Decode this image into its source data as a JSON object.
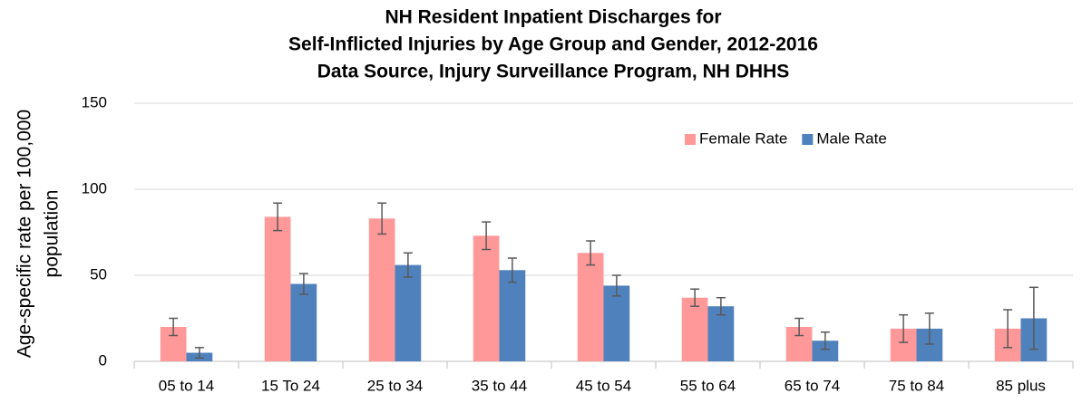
{
  "chart_data": {
    "type": "bar",
    "title": [
      "NH Resident Inpatient Discharges for",
      "Self-Inflicted Injuries by Age Group and Gender, 2012-2016",
      "Data Source, Injury Surveillance Program, NH DHHS"
    ],
    "y_label": [
      "Age-specific rate per 100,000",
      "population"
    ],
    "categories": [
      "05 to 14",
      "15 To 24",
      "25 to 34",
      "35 to 44",
      "45 to 54",
      "55 to 64",
      "65 to 74",
      "75 to 84",
      "85 plus"
    ],
    "series": [
      {
        "name": "Female Rate",
        "color": "#ff9999",
        "values": [
          20,
          84,
          83,
          73,
          63,
          37,
          20,
          19,
          19
        ],
        "errors": [
          5,
          8,
          9,
          8,
          7,
          5,
          5,
          8,
          11
        ]
      },
      {
        "name": "Male Rate",
        "color": "#4f81bd",
        "values": [
          5,
          45,
          56,
          53,
          44,
          32,
          12,
          19,
          25
        ],
        "errors": [
          3,
          6,
          7,
          7,
          6,
          5,
          5,
          9,
          18
        ]
      }
    ],
    "ylim": [
      0,
      150
    ],
    "yticks": [
      0,
      50,
      100,
      150
    ],
    "grid": true,
    "legend": "top-right"
  }
}
